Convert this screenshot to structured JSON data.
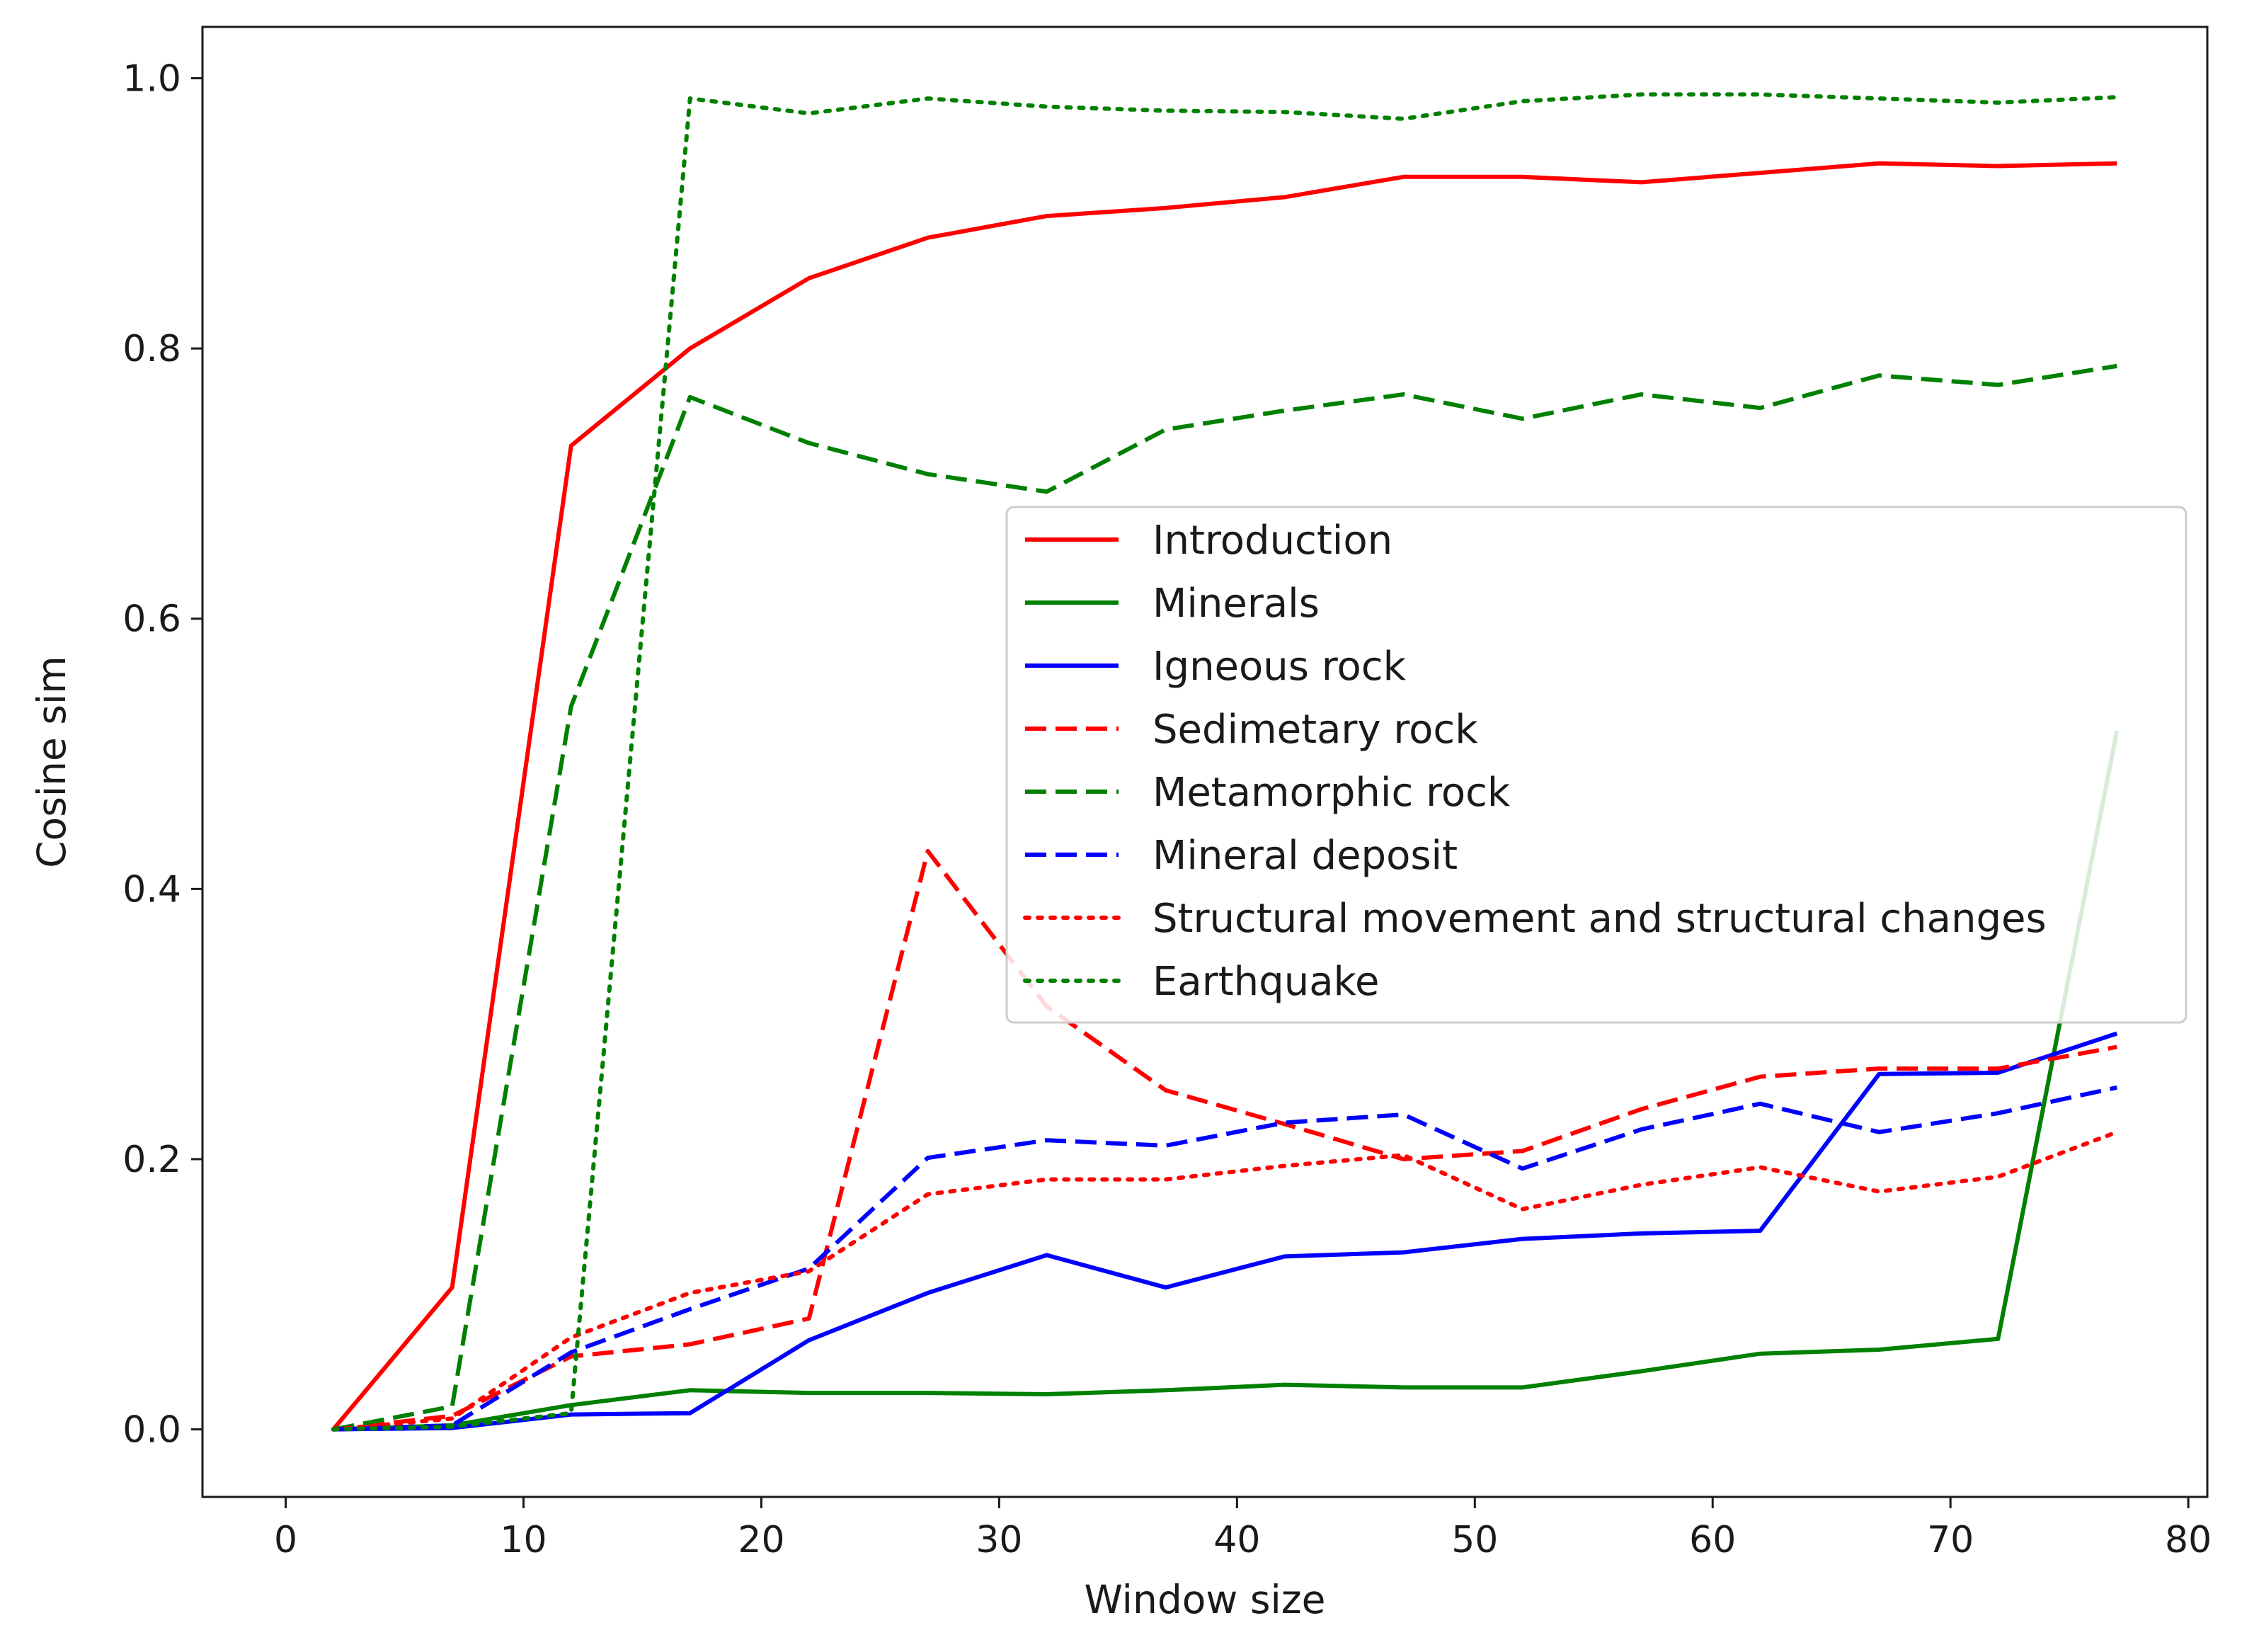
{
  "chart_data": {
    "type": "line",
    "title": "",
    "xlabel": "Window size",
    "ylabel": "Cosine sim",
    "xlim": [
      -3.5,
      80.8
    ],
    "ylim": [
      -0.05,
      1.038
    ],
    "xticks": [
      0,
      10,
      20,
      30,
      40,
      50,
      60,
      70,
      80
    ],
    "yticks": [
      0.0,
      0.2,
      0.4,
      0.6,
      0.8,
      1.0
    ],
    "x": [
      2,
      7,
      12,
      17,
      22,
      27,
      32,
      37,
      42,
      47,
      52,
      57,
      62,
      67,
      72,
      77
    ],
    "legend_position": "center-right",
    "grid": false,
    "series": [
      {
        "name": "Introduction",
        "color": "#ff0000",
        "style": "solid",
        "values": [
          0.0,
          0.105,
          0.728,
          0.8,
          0.852,
          0.882,
          0.898,
          0.904,
          0.912,
          0.927,
          0.927,
          0.923,
          0.93,
          0.937,
          0.935,
          0.937
        ]
      },
      {
        "name": "Minerals",
        "color": "#008000",
        "style": "solid",
        "values": [
          0.0,
          0.003,
          0.018,
          0.029,
          0.027,
          0.027,
          0.026,
          0.029,
          0.033,
          0.031,
          0.031,
          0.043,
          0.056,
          0.059,
          0.067,
          0.517
        ]
      },
      {
        "name": "Igneous rock",
        "color": "#0000ff",
        "style": "solid",
        "values": [
          0.0,
          0.001,
          0.011,
          0.012,
          0.066,
          0.101,
          0.129,
          0.105,
          0.128,
          0.131,
          0.141,
          0.145,
          0.147,
          0.263,
          0.264,
          0.293
        ]
      },
      {
        "name": "Sedimetary rock",
        "color": "#ff0000",
        "style": "dashed",
        "values": [
          0.0,
          0.01,
          0.054,
          0.063,
          0.082,
          0.428,
          0.313,
          0.251,
          0.226,
          0.2,
          0.206,
          0.237,
          0.261,
          0.267,
          0.267,
          0.283
        ]
      },
      {
        "name": "Metamorphic rock",
        "color": "#008000",
        "style": "dashed",
        "values": [
          0.0,
          0.017,
          0.535,
          0.764,
          0.73,
          0.707,
          0.694,
          0.74,
          0.754,
          0.766,
          0.748,
          0.766,
          0.756,
          0.78,
          0.773,
          0.787
        ]
      },
      {
        "name": "Mineral deposit",
        "color": "#0000ff",
        "style": "dashed",
        "values": [
          0.0,
          0.003,
          0.057,
          0.089,
          0.119,
          0.201,
          0.214,
          0.21,
          0.227,
          0.233,
          0.193,
          0.222,
          0.241,
          0.22,
          0.234,
          0.253
        ]
      },
      {
        "name": "Structural movement and structural changes",
        "color": "#ff0000",
        "style": "dotted",
        "values": [
          0.0,
          0.008,
          0.068,
          0.101,
          0.117,
          0.174,
          0.185,
          0.185,
          0.195,
          0.203,
          0.163,
          0.181,
          0.194,
          0.176,
          0.187,
          0.22
        ]
      },
      {
        "name": "Earthquake",
        "color": "#008000",
        "style": "dotted",
        "values": [
          0.0,
          0.002,
          0.012,
          0.985,
          0.974,
          0.985,
          0.979,
          0.976,
          0.975,
          0.97,
          0.983,
          0.988,
          0.988,
          0.985,
          0.982,
          0.986
        ]
      }
    ]
  }
}
